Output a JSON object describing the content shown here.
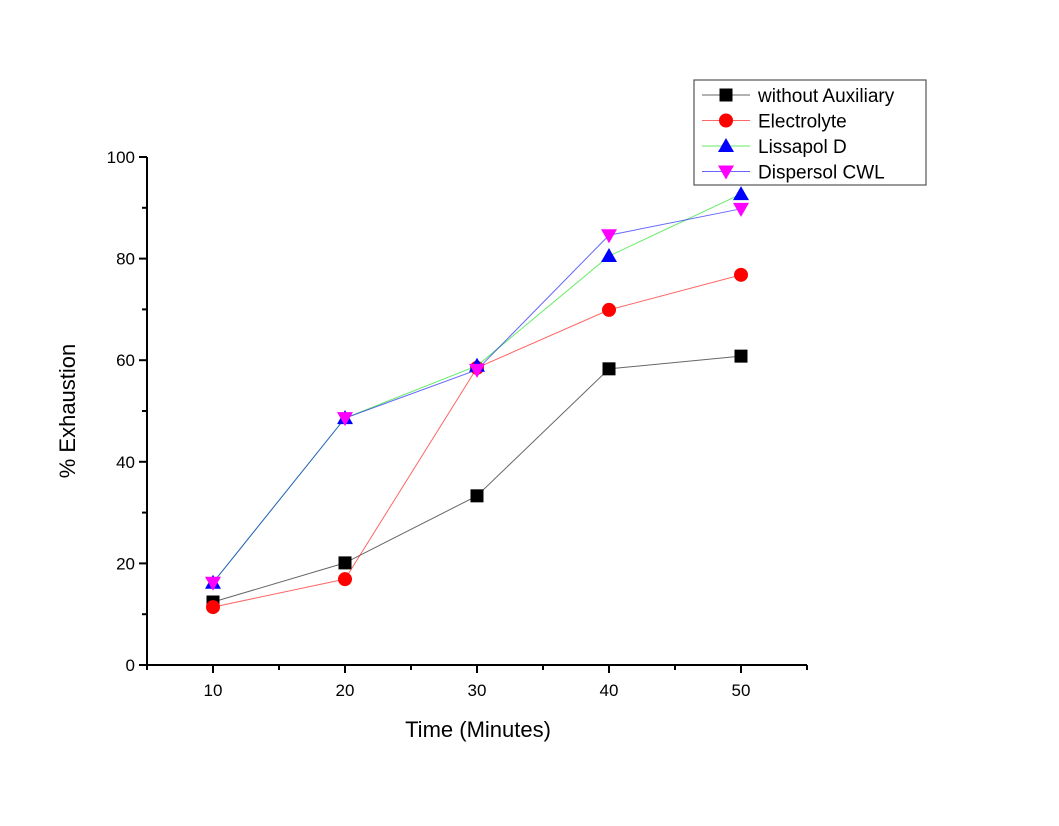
{
  "chart_data": {
    "type": "line",
    "title": "",
    "xlabel": "Time (Minutes)",
    "ylabel": "% Exhaustion",
    "xlim": [
      5,
      55
    ],
    "ylim": [
      0,
      100
    ],
    "x_major_ticks": [
      10,
      20,
      30,
      40,
      50
    ],
    "x_minor_ticks": [
      5,
      15,
      25,
      35,
      45,
      55
    ],
    "y_major_ticks": [
      0,
      20,
      40,
      60,
      80,
      100
    ],
    "y_minor_ticks": [
      10,
      30,
      50,
      70,
      90
    ],
    "x_tick_labels": [
      "10",
      "20",
      "30",
      "40",
      "50"
    ],
    "y_tick_labels": [
      "0",
      "20",
      "40",
      "60",
      "80",
      "100"
    ],
    "grid": false,
    "legend_position": "top-right",
    "x": [
      10,
      20,
      30,
      40,
      50
    ],
    "series": [
      {
        "name": "without Auxiliary",
        "line_color": "#000000",
        "marker": "square",
        "marker_color": "#000000",
        "values": [
          12.4,
          20.1,
          33.3,
          58.3,
          60.8
        ]
      },
      {
        "name": "Electrolyte",
        "line_color": "#ff0000",
        "marker": "circle",
        "marker_color": "#ff0000",
        "values": [
          11.4,
          16.9,
          58.5,
          69.9,
          76.8
        ]
      },
      {
        "name": "Lissapol D",
        "line_color": "#00dd00",
        "marker": "triangle-up",
        "marker_color": "#0000ff",
        "values": [
          16.2,
          48.6,
          58.9,
          80.5,
          92.7
        ]
      },
      {
        "name": "Dispersol CWL",
        "line_color": "#0000ff",
        "marker": "triangle-down",
        "marker_color": "#ff00ff",
        "values": [
          16.2,
          48.6,
          58.1,
          84.6,
          89.8
        ]
      }
    ]
  }
}
